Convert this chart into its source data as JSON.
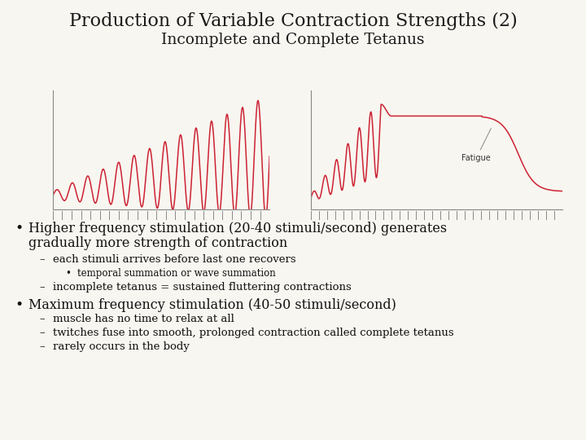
{
  "title_line1": "Production of Variable Contraction Strengths (2)",
  "title_line2": "Incomplete and Complete Tetanus",
  "background_color": "#f8f6f0",
  "title_color": "#1a1a1a",
  "curve_color": "#cc2233",
  "axes_color": "#888888",
  "text_color": "#111111",
  "bullet1_main_l1": "Higher frequency stimulation (20-40 stimuli/second) generates",
  "bullet1_main_l2": "gradually more strength of contraction",
  "bullet1_sub1": "each stimuli arrives before last one recovers",
  "bullet1_sub1_sub": "temporal summation or wave summation",
  "bullet1_sub2": "incomplete tetanus = sustained fluttering contractions",
  "bullet2_main": "Maximum frequency stimulation (40-50 stimuli/second)",
  "bullet2_sub1": "muscle has no time to relax at all",
  "bullet2_sub2": "twitches fuse into smooth, prolonged contraction called complete tetanus",
  "bullet2_sub3": "rarely occurs in the body",
  "fatigue_label": "Fatigue"
}
